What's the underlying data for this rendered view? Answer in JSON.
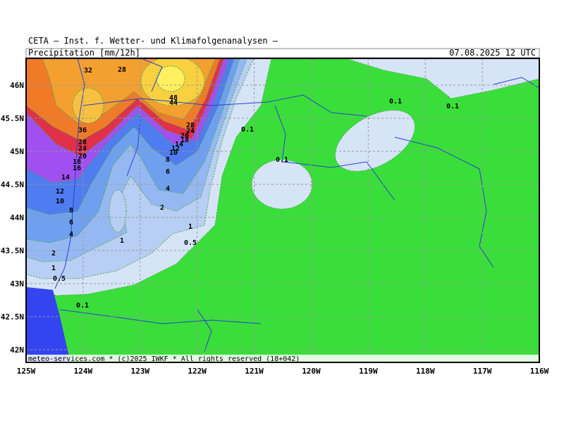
{
  "header": {
    "title": "CETA — Inst. f. Wetter- und Klimafolgenanalysen —",
    "subtitle": "Precipitation [mm/12h]",
    "timestamp": "07.08.2025 12 UTC"
  },
  "axes": {
    "lon_labels": [
      "125W",
      "124W",
      "123W",
      "122W",
      "121W",
      "120W",
      "119W",
      "118W",
      "117W",
      "116W"
    ],
    "lat_labels": [
      "46N",
      "45.5N",
      "45N",
      "44.5N",
      "44N",
      "43.5N",
      "43N",
      "42.5N",
      "42N"
    ]
  },
  "contour_labels": [
    "32",
    "28",
    "48",
    "44",
    "36",
    "28",
    "24",
    "20",
    "18",
    "16",
    "14",
    "12",
    "10",
    "8",
    "6",
    "4",
    "2",
    "1",
    "0.5",
    "0.1",
    "28",
    "24",
    "20",
    "18",
    "14",
    "12",
    "10",
    "8",
    "6",
    "4",
    "2",
    "1",
    "0.5",
    "1",
    "0.1",
    "0.1",
    "0.1",
    "0.1"
  ],
  "footer": "meteo-services.com * (c)2025 IWKF * All rights reserved (18+042)"
}
